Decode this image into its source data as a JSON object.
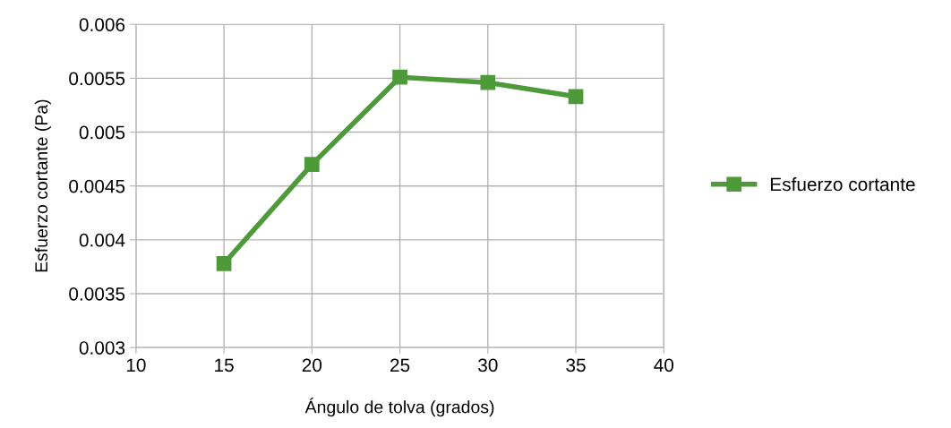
{
  "chart_data": {
    "type": "line",
    "xlabel": "Ángulo de tolva (grados)",
    "ylabel": "Esfuerzo cortante (Pa)",
    "x": [
      15,
      20,
      25,
      30,
      35
    ],
    "series": [
      {
        "name": "Esfuerzo cortante",
        "color": "#4e9a3a",
        "values": [
          0.00378,
          0.0047,
          0.00551,
          0.00546,
          0.00533
        ]
      }
    ],
    "xlim": [
      10,
      40
    ],
    "xticks": [
      10,
      15,
      20,
      25,
      30,
      35,
      40
    ],
    "ylim": [
      0.003,
      0.006
    ],
    "yticks": [
      0.003,
      0.0035,
      0.004,
      0.0045,
      0.005,
      0.0055,
      0.006
    ],
    "grid": true,
    "legend": "right",
    "marker": "square",
    "line_style": "solid"
  }
}
